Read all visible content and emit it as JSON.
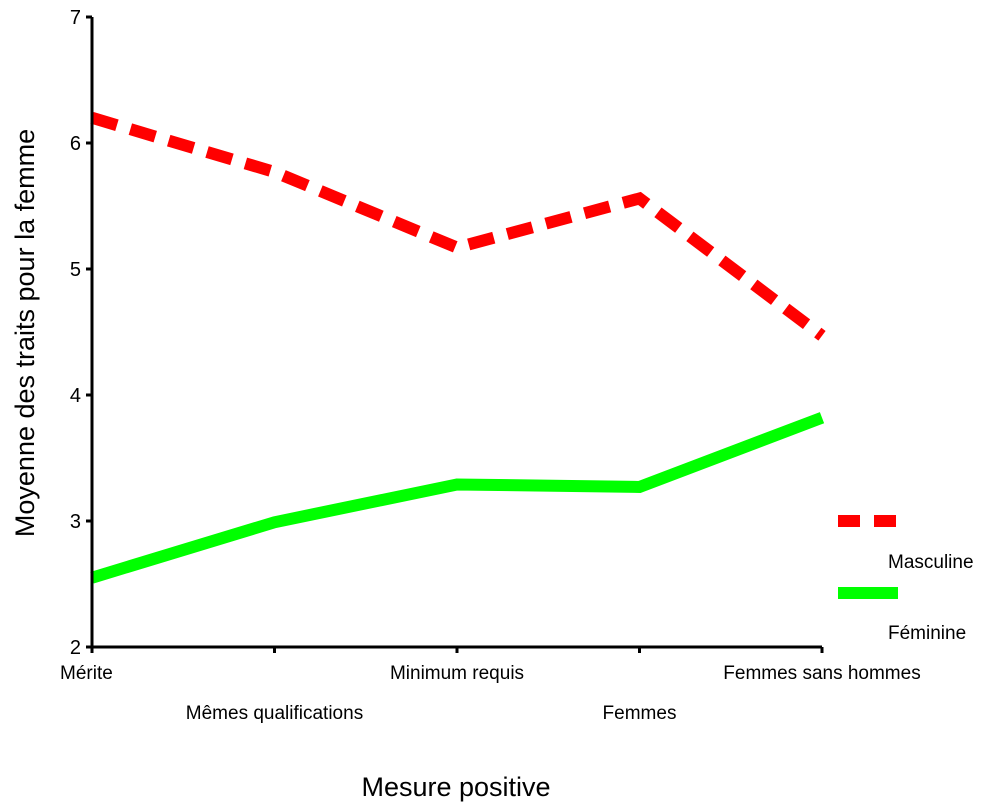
{
  "chart_data": {
    "type": "line",
    "categories": [
      "Mérite",
      "Mêmes qualifications",
      "Minimum requis",
      "Femmes",
      "Femmes sans hommes"
    ],
    "series": [
      {
        "name": "Masculine",
        "values": [
          6.2,
          5.77,
          5.17,
          5.56,
          4.47
        ],
        "color": "#ff0000",
        "style": "dashed"
      },
      {
        "name": "Féminine",
        "values": [
          2.55,
          2.99,
          3.29,
          3.27,
          3.82
        ],
        "color": "#00ff00",
        "style": "solid"
      }
    ],
    "xlabel": "Mesure positive",
    "ylabel": "Moyenne des traits pour la femme",
    "ylim": [
      2,
      7
    ],
    "yticks": [
      "2",
      "3",
      "4",
      "5",
      "6",
      "7"
    ],
    "grid": false,
    "legend": "right"
  }
}
